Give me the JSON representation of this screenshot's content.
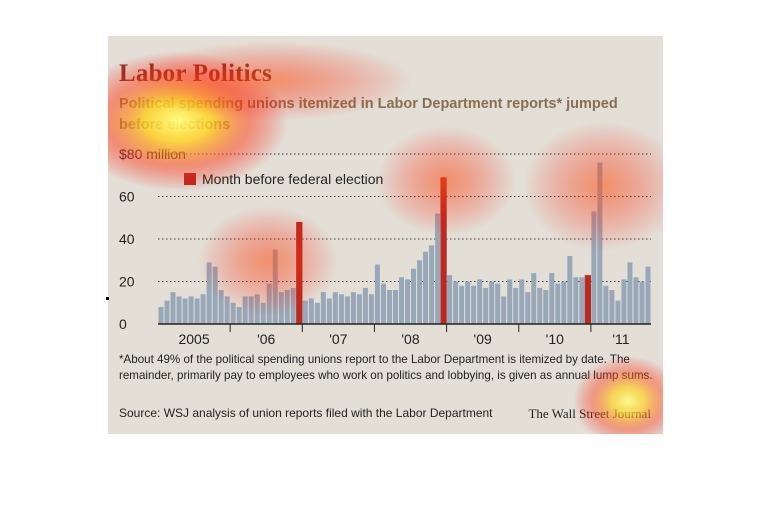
{
  "figure": {
    "title": "Labor Politics",
    "subtitle": "Political spending unions itemized in Labor Department reports* jumped before elections",
    "footnote": "*About 49% of the political spending unions report to the Labor Department is itemized by date. The remainder, primarily pay to employees who work on politics and lobbying, is given as annual lump sums.",
    "source": "Source: WSJ analysis of union reports filed with the Labor Department",
    "credit": "The Wall Street Journal"
  },
  "colors": {
    "panel_background": "#e3dfd6",
    "regular_bar": "#98a8b8",
    "election_bar": "#b92b22",
    "title": "#8a3326",
    "subtitle": "#86704f"
  },
  "heatmap_overlay": true,
  "chart_data": {
    "type": "bar",
    "ylabel": "",
    "xlabel": "",
    "ylim": [
      0,
      80
    ],
    "yticks": [
      0,
      20,
      40,
      60,
      80
    ],
    "ytick_labels": [
      "0",
      "20",
      "40",
      "60",
      "$80 million"
    ],
    "grid": "horizontal dotted",
    "legend": {
      "position": "top-left",
      "entries": [
        "Month before federal election"
      ]
    },
    "x_group_labels": [
      "2005",
      "'06",
      "'07",
      "'08",
      "'09",
      "'10",
      "'11"
    ],
    "series": [
      {
        "name": "Month before federal election",
        "highlight_indices": [
          23,
          47,
          71
        ]
      }
    ],
    "values": [
      8,
      11,
      15,
      13,
      12,
      13,
      12,
      14,
      29,
      27,
      16,
      13,
      10,
      8,
      13,
      13,
      14,
      10,
      19,
      35,
      15,
      16,
      17,
      48,
      11,
      12,
      10,
      15,
      12,
      15,
      14,
      13,
      15,
      14,
      17,
      14,
      28,
      19,
      16,
      16,
      22,
      21,
      26,
      30,
      34,
      37,
      52,
      69,
      23,
      20,
      18,
      20,
      18,
      21,
      17,
      20,
      19,
      13,
      21,
      17,
      21,
      15,
      24,
      17,
      16,
      24,
      19,
      20,
      32,
      22,
      22,
      23,
      53,
      76,
      18,
      16,
      11,
      21,
      29,
      22,
      20,
      27
    ]
  }
}
